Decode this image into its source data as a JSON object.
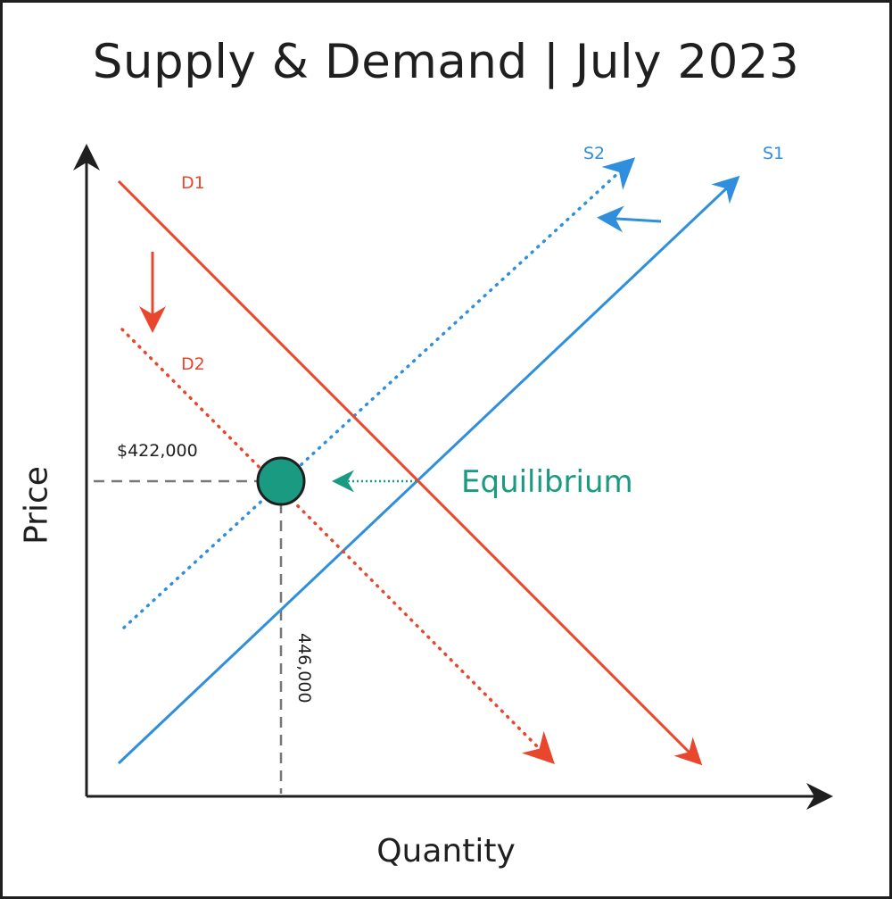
{
  "title": "Supply & Demand | July 2023",
  "axes": {
    "y_label": "Price",
    "x_label": "Quantity"
  },
  "curves": {
    "d1": "D1",
    "d2": "D2",
    "s1": "S1",
    "s2": "S2"
  },
  "equilibrium": {
    "label": "Equilibrium",
    "price_label": "$422,000",
    "quantity_label": "446,000"
  },
  "colors": {
    "demand": "#e8472e",
    "supply": "#2f8fdc",
    "equilibrium": "#1a9a80",
    "axis": "#1f1f1f",
    "guide": "#777777"
  }
}
